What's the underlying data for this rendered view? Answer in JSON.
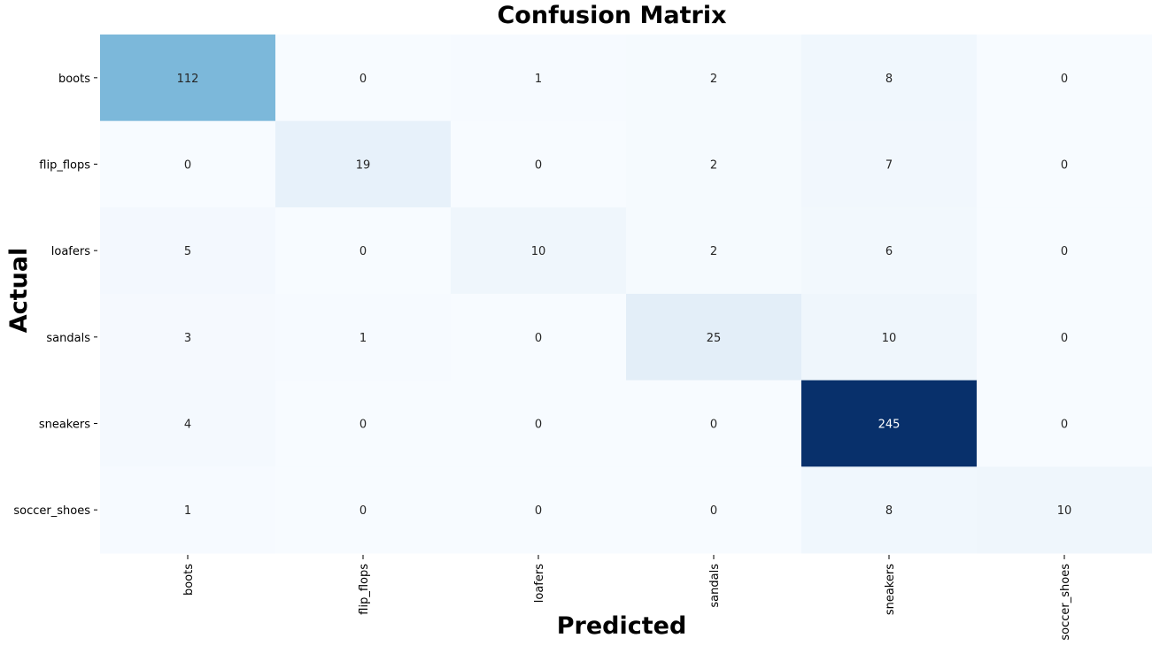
{
  "chart_data": {
    "type": "heatmap",
    "title": "Confusion Matrix",
    "xlabel": "Predicted",
    "ylabel": "Actual",
    "row_labels": [
      "boots",
      "flip_flops",
      "loafers",
      "sandals",
      "sneakers",
      "soccer_shoes"
    ],
    "col_labels": [
      "boots",
      "flip_flops",
      "loafers",
      "sandals",
      "sneakers",
      "soccer_shoes"
    ],
    "values": [
      [
        112,
        0,
        1,
        2,
        8,
        0
      ],
      [
        0,
        19,
        0,
        2,
        7,
        0
      ],
      [
        5,
        0,
        10,
        2,
        6,
        0
      ],
      [
        3,
        1,
        0,
        25,
        10,
        0
      ],
      [
        4,
        0,
        0,
        0,
        245,
        0
      ],
      [
        1,
        0,
        0,
        0,
        8,
        10
      ]
    ],
    "colormap": "Blues",
    "colorbar": false,
    "color_low": "#f7fbff",
    "color_high": "#08306b"
  }
}
